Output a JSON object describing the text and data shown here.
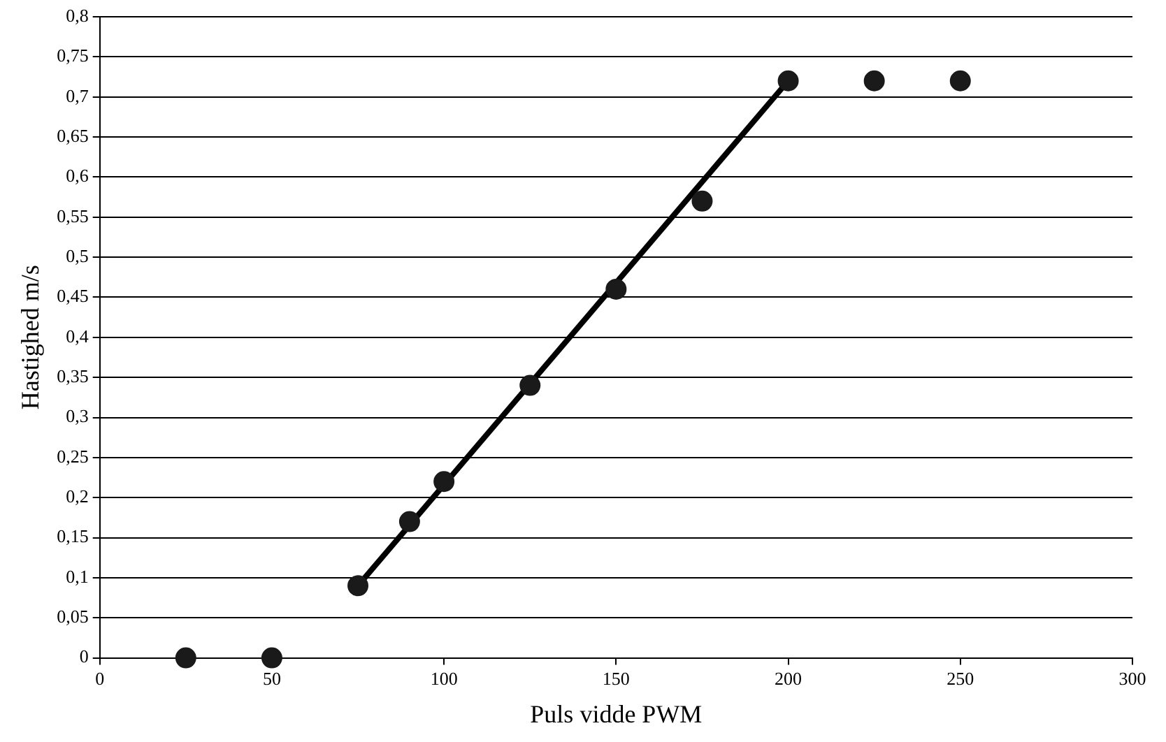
{
  "chart_data": {
    "type": "scatter",
    "xlabel": "Puls vidde PWM",
    "ylabel": "Hastighed m/s",
    "series": [
      {
        "type": "scatter",
        "color": "#1a1a1a",
        "x": [
          25,
          50,
          75,
          90,
          100,
          125,
          150,
          175,
          200,
          225,
          250
        ],
        "values": [
          0,
          0,
          0.09,
          0.17,
          0.22,
          0.34,
          0.46,
          0.57,
          0.72,
          0.72,
          0.72
        ],
        "marker": "circle"
      },
      {
        "type": "line",
        "color": "#000000",
        "x": [
          75,
          200
        ],
        "values": [
          0.09,
          0.72
        ],
        "marker": "none",
        "line_style": "solid"
      }
    ],
    "xlim": [
      0,
      300
    ],
    "xticks": [
      0,
      50,
      100,
      150,
      200,
      250,
      300
    ],
    "ylim": [
      0,
      0.8
    ],
    "yticks": [
      0,
      {
        "value": 0.05,
        "label": "0,05"
      },
      {
        "value": 0.1,
        "label": "0,1"
      },
      {
        "value": 0.15,
        "label": "0,15"
      },
      {
        "value": 0.2,
        "label": "0,2"
      },
      {
        "value": 0.25,
        "label": "0,25"
      },
      {
        "value": 0.3,
        "label": "0,3"
      },
      {
        "value": 0.35,
        "label": "0,35"
      },
      {
        "value": 0.4,
        "label": "0,4"
      },
      {
        "value": 0.45,
        "label": "0,45"
      },
      {
        "value": 0.5,
        "label": "0,5"
      },
      {
        "value": 0.55,
        "label": "0,55"
      },
      {
        "value": 0.6,
        "label": "0,6"
      },
      {
        "value": 0.65,
        "label": "0,65"
      },
      {
        "value": 0.7,
        "label": "0,7"
      },
      {
        "value": 0.75,
        "label": "0,75"
      },
      {
        "value": 0.8,
        "label": "0,8"
      }
    ],
    "grid": "y",
    "legend": false
  }
}
